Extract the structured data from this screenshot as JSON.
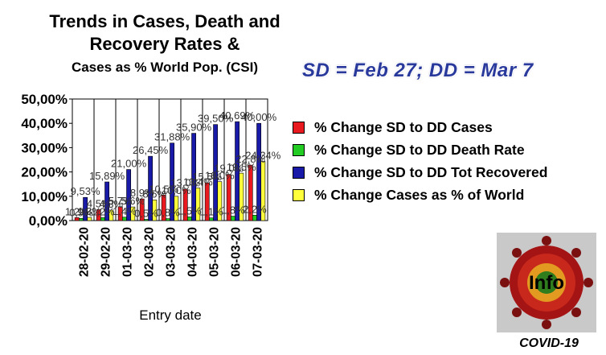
{
  "header": {
    "title_line1": "Trends in Cases, Death and",
    "title_line2": "Recovery Rates &",
    "title_line3": "Cases as % World Pop. (CSI)",
    "dates_note": "SD = Feb 27;  DD = Mar 7"
  },
  "badge": {
    "label": "Info",
    "caption": "COVID-19",
    "icon": "virus-icon"
  },
  "chart_data": {
    "type": "bar",
    "title": "",
    "xlabel": "Entry date",
    "ylabel": "",
    "ylim": [
      0,
      50
    ],
    "y_ticks": [
      "0,00%",
      "10,00%",
      "20,00%",
      "30,00%",
      "40,00%",
      "50,00%"
    ],
    "grid": "vertical",
    "legend_position": "right",
    "categories": [
      "28-02-20",
      "29-02-20",
      "01-03-20",
      "02-03-20",
      "03-03-20",
      "04-03-20",
      "05-03-20",
      "06-03-20",
      "07-03-20"
    ],
    "series": [
      {
        "name": "% Change SD to DD Cases",
        "color": "#e8191f",
        "values": [
          1.2,
          4.5,
          5.7,
          8.9,
          10.5,
          13.0,
          15.5,
          19.0,
          22.8
        ],
        "labels": [
          "1,2%",
          "4,5%",
          "5,7%",
          "8,9%",
          "10,5%",
          "13,0%",
          "15,5%",
          "19,0%",
          "22,8%"
        ]
      },
      {
        "name": "% Change SD to DD Death Rate",
        "color": "#22cc22",
        "values": [
          0.9,
          1.2,
          1.4,
          0.5,
          0.8,
          1.5,
          1.1,
          1.8,
          2.2
        ],
        "labels": [
          "0,9%",
          "1,2%",
          "1,4%",
          "0,5%",
          "0,8%",
          "1,5%",
          "1,1%",
          "1,8%",
          "2,2%"
        ]
      },
      {
        "name": "% Change SD to DD Tot Recovered",
        "color": "#1a1aa8",
        "values": [
          9.53,
          15.89,
          21.0,
          26.45,
          31.88,
          35.9,
          39.5,
          40.69,
          40.0
        ],
        "labels": [
          "9,53%",
          "15,89%",
          "21,00%",
          "26,45%",
          "31,88%",
          "35,90%",
          "39,50%",
          "40,69%",
          "40,00%"
        ]
      },
      {
        "name": "% Change Cases as % of World",
        "color": "#ffff3b",
        "values": [
          1.3,
          4.3,
          5.6,
          8.5,
          10.0,
          13.4,
          16.0,
          19.5,
          24.34
        ],
        "labels": [
          "1,3%",
          "4,3%",
          "5,6%",
          "8,5%",
          "10,0%",
          "13,4%",
          "16,0%",
          "19,5%",
          "24,34%"
        ]
      }
    ]
  }
}
